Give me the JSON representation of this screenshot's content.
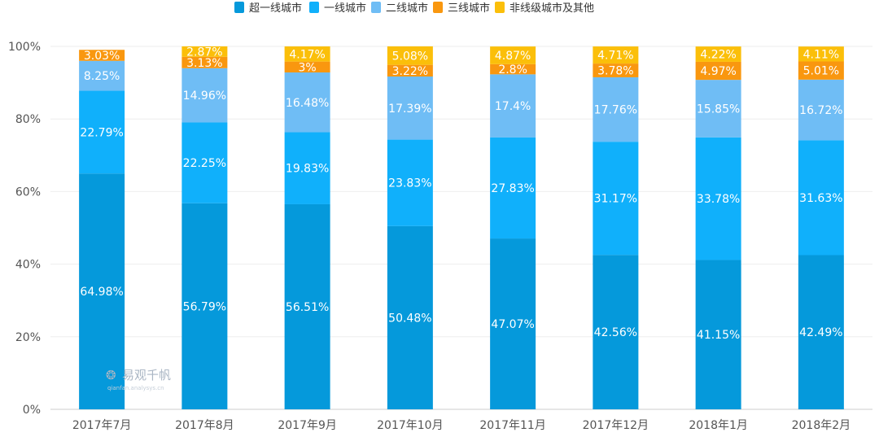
{
  "chart_data": {
    "type": "bar",
    "stacked": true,
    "categories": [
      "2017年7月",
      "2017年8月",
      "2017年9月",
      "2017年10月",
      "2017年11月",
      "2017年12月",
      "2018年1月",
      "2018年2月"
    ],
    "series": [
      {
        "name": "超一线城市",
        "color": "#0599db",
        "values": [
          64.98,
          56.79,
          56.51,
          50.48,
          47.07,
          42.56,
          41.15,
          42.49
        ]
      },
      {
        "name": "一线城市",
        "color": "#10b0fb",
        "values": [
          22.79,
          22.25,
          19.83,
          23.83,
          27.83,
          31.17,
          33.78,
          31.63
        ]
      },
      {
        "name": "二线城市",
        "color": "#6fbdf5",
        "values": [
          8.25,
          14.96,
          16.48,
          17.39,
          17.4,
          17.76,
          15.85,
          16.72
        ]
      },
      {
        "name": "三线城市",
        "color": "#f9970f",
        "values": [
          3.03,
          3.13,
          3,
          3.22,
          2.8,
          3.78,
          4.97,
          5.01
        ]
      },
      {
        "name": "非线级城市及其他",
        "color": "#fbbf0a",
        "values": [
          0,
          2.87,
          4.17,
          5.08,
          4.87,
          4.71,
          4.22,
          4.11
        ]
      }
    ],
    "y_ticks": [
      "0%",
      "20%",
      "40%",
      "60%",
      "80%",
      "100%"
    ],
    "ylim": [
      0,
      100
    ],
    "legend_position": "top-center",
    "watermark": {
      "text": "易观千帆",
      "sub": "qianfan.analysys.cn"
    }
  }
}
